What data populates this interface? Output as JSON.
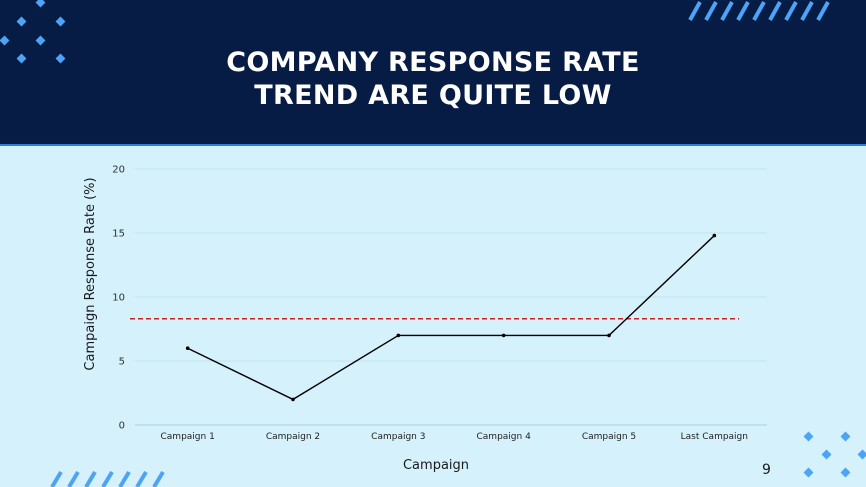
{
  "slide": {
    "title_line1": "COMPANY RESPONSE RATE",
    "title_line2": "TREND ARE QUITE LOW",
    "page_number": "9",
    "colors": {
      "header_bg": "#061c45",
      "body_bg": "#d4f1fc",
      "accent": "#4da3f5",
      "line": "#000000",
      "threshold": "#cc1f1f"
    }
  },
  "chart_data": {
    "type": "line",
    "title": "",
    "xlabel": "Campaign",
    "ylabel": "Campaign Response Rate (%)",
    "categories": [
      "Campaign 1",
      "Campaign 2",
      "Campaign 3",
      "Campaign 4",
      "Campaign 5",
      "Last Campaign"
    ],
    "values": [
      6,
      2,
      7,
      7,
      7,
      14.8
    ],
    "reference_line": {
      "value": 8.3,
      "style": "dashed",
      "color": "#cc1f1f"
    },
    "ylim": [
      0,
      20
    ],
    "yticks": [
      0,
      5,
      10,
      15,
      20
    ],
    "grid": true
  }
}
